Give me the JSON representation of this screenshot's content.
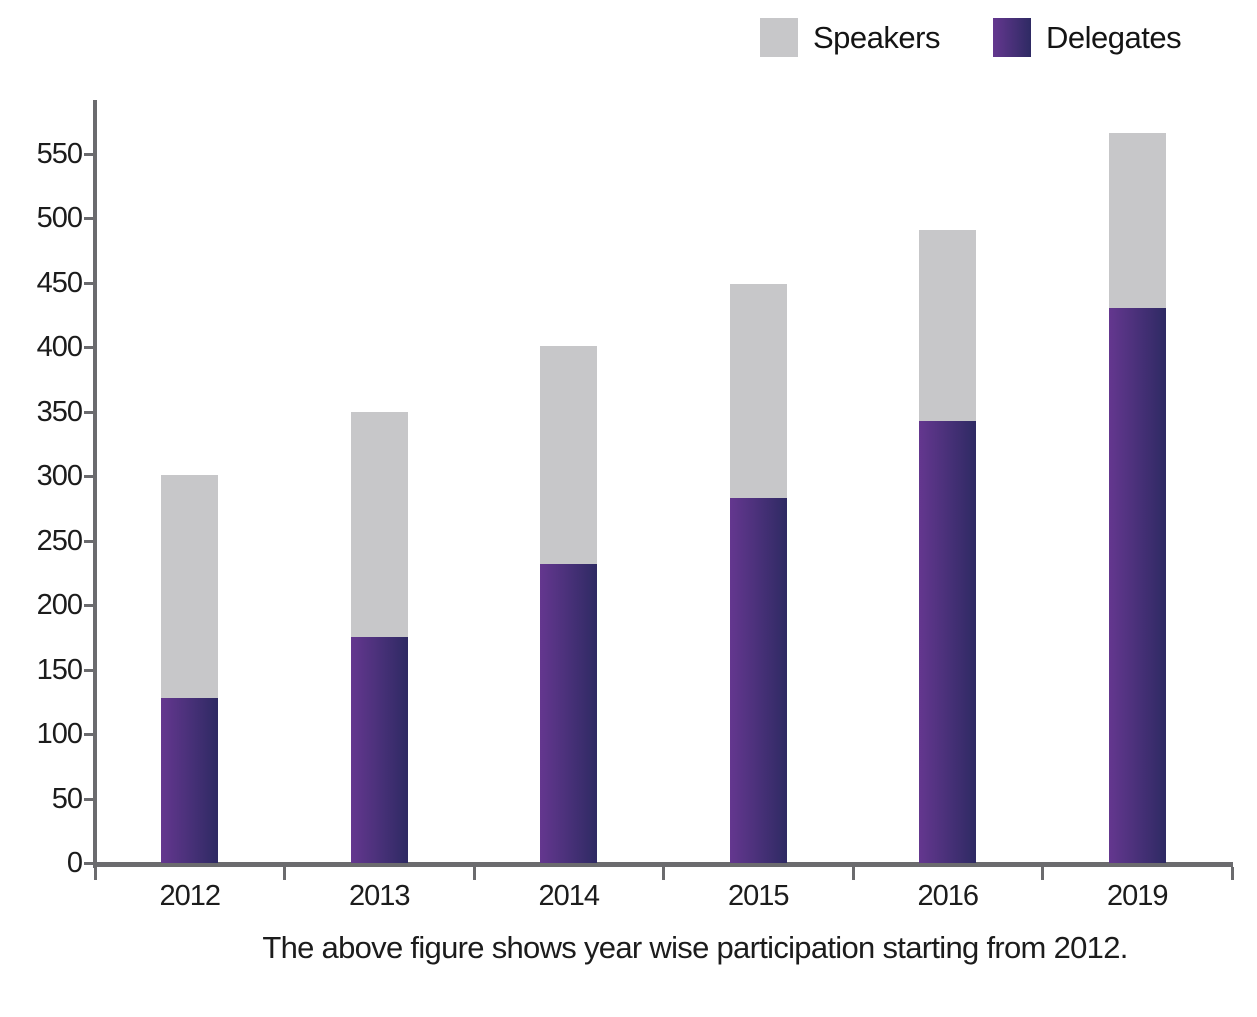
{
  "chart_data": {
    "type": "bar",
    "stacked": true,
    "title": "",
    "xlabel": "",
    "ylabel": "",
    "grid": false,
    "categories": [
      "2012",
      "2013",
      "2014",
      "2015",
      "2016",
      "2019"
    ],
    "series": [
      {
        "name": "Delegates",
        "values": [
          128,
          175,
          232,
          283,
          343,
          430
        ],
        "color_from": "#64378f",
        "color_to": "#2e2a63"
      },
      {
        "name": "Speakers",
        "values": [
          173,
          175,
          169,
          166,
          148,
          136
        ],
        "color": "#c7c7c9"
      }
    ],
    "totals": [
      301,
      350,
      401,
      449,
      491,
      566
    ],
    "yticks": [
      0,
      50,
      100,
      150,
      200,
      250,
      300,
      350,
      400,
      450,
      500,
      550
    ],
    "ylim": [
      0,
      590
    ],
    "axis_color": "#6b6b6e",
    "text_color": "#1c1c1c",
    "legend": {
      "position": "top-right",
      "entries": [
        {
          "label": "Speakers",
          "color": "#c7c7c9"
        },
        {
          "label": "Delegates",
          "color_from": "#64378f",
          "color_to": "#2e2a63"
        }
      ]
    },
    "caption": "The above figure shows year wise participation starting from 2012."
  }
}
